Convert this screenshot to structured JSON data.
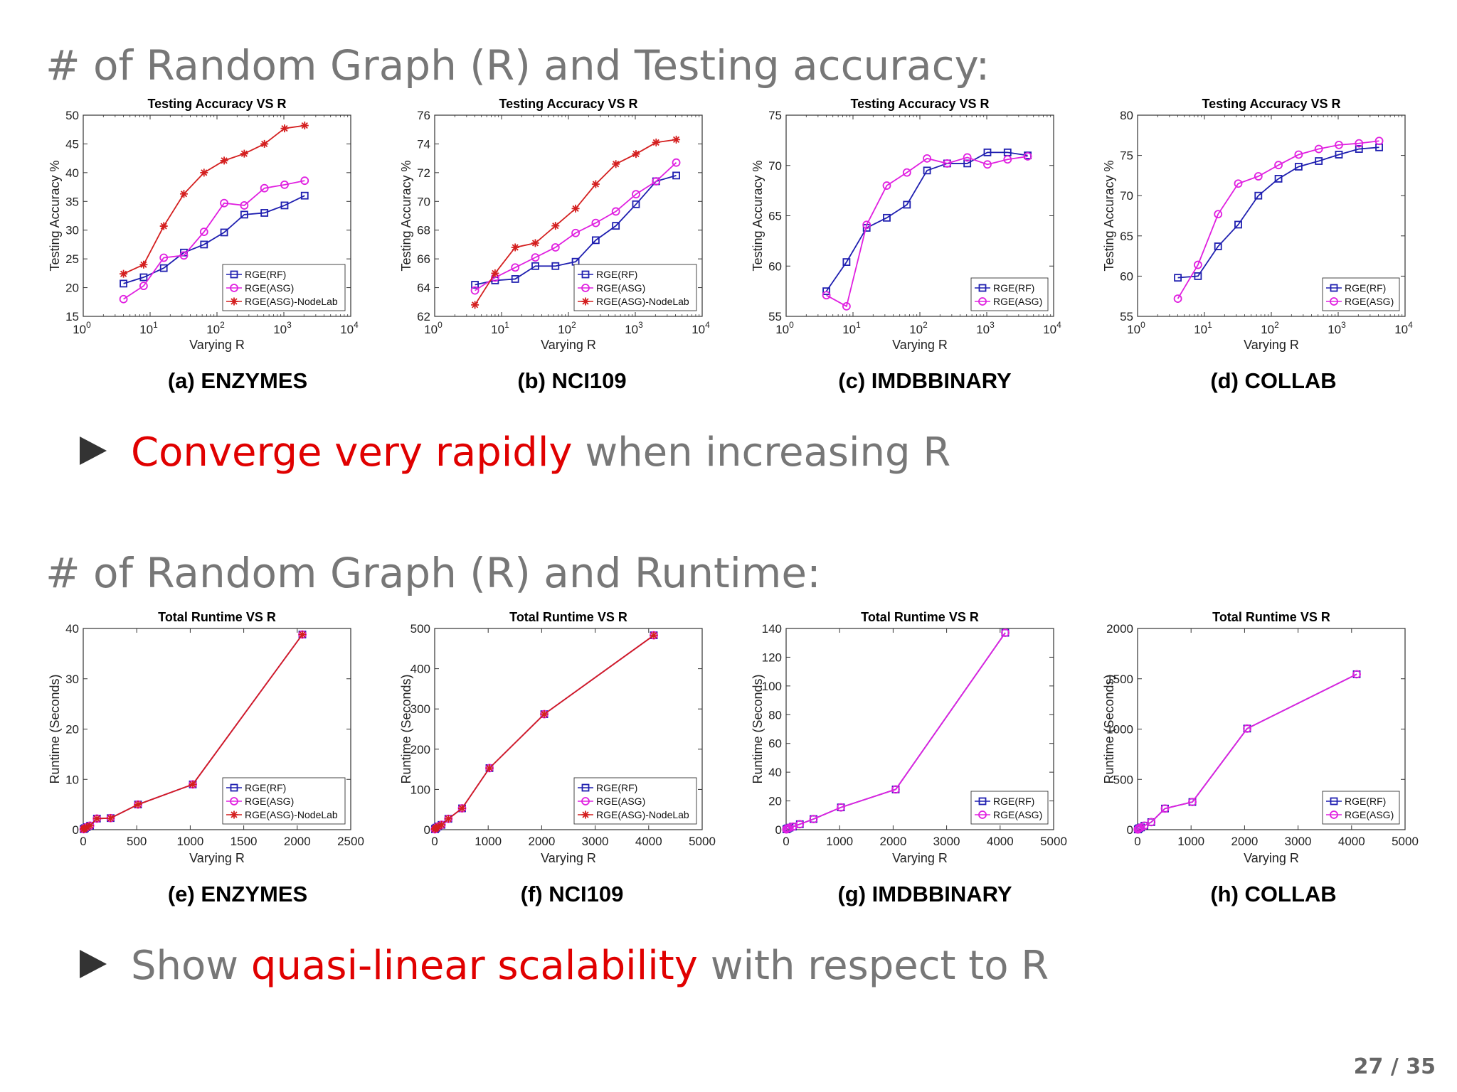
{
  "slide": {
    "heading1": "# of Random Graph (R) and Testing accuracy:",
    "bullet1_red": "Converge very rapidly",
    "bullet1_rest": " when increasing R",
    "heading2": "# of Random Graph (R) and Runtime:",
    "bullet2_pre": "Show ",
    "bullet2_red": "quasi-linear scalability",
    "bullet2_post": " with respect to R",
    "page": "27 / 35"
  },
  "colors": {
    "rf": "#1f1fb0",
    "asg": "#e020e0",
    "nodelab": "#d41f1f"
  },
  "chart_data": [
    {
      "id": "a",
      "type": "line",
      "xscale": "log",
      "caption": "(a) ENZYMES",
      "title": "Testing Accuracy VS R",
      "xlabel": "Varying R",
      "ylabel": "Testing Accuracy %",
      "xlim": [
        1,
        10000
      ],
      "ylim": [
        15,
        50
      ],
      "yticks": [
        15,
        20,
        25,
        30,
        35,
        40,
        45,
        50
      ],
      "x": [
        4,
        8,
        16,
        32,
        64,
        128,
        256,
        512,
        1024,
        2048
      ],
      "series": [
        {
          "name": "RGE(RF)",
          "marker": "square",
          "values": [
            20.7,
            21.8,
            23.4,
            26.1,
            27.5,
            29.6,
            32.7,
            33.0,
            34.3,
            36.0
          ]
        },
        {
          "name": "RGE(ASG)",
          "marker": "circle",
          "values": [
            18.0,
            20.3,
            25.2,
            25.6,
            29.7,
            34.7,
            34.3,
            37.3,
            37.9,
            38.6
          ]
        },
        {
          "name": "RGE(ASG)-NodeLab",
          "marker": "star",
          "values": [
            22.4,
            24.0,
            30.7,
            36.3,
            40.0,
            42.1,
            43.3,
            45.0,
            47.7,
            48.2
          ]
        }
      ]
    },
    {
      "id": "b",
      "type": "line",
      "xscale": "log",
      "caption": "(b) NCI109",
      "title": "Testing Accuracy VS R",
      "xlabel": "Varying R",
      "ylabel": "Testing Accuracy %",
      "xlim": [
        1,
        10000
      ],
      "ylim": [
        62,
        76
      ],
      "yticks": [
        62,
        64,
        66,
        68,
        70,
        72,
        74,
        76
      ],
      "x": [
        4,
        8,
        16,
        32,
        64,
        128,
        256,
        512,
        1024,
        2048,
        4096
      ],
      "series": [
        {
          "name": "RGE(RF)",
          "marker": "square",
          "values": [
            64.2,
            64.5,
            64.6,
            65.5,
            65.5,
            65.8,
            67.3,
            68.3,
            69.8,
            71.4,
            71.8
          ]
        },
        {
          "name": "RGE(ASG)",
          "marker": "circle",
          "values": [
            63.8,
            64.7,
            65.4,
            66.1,
            66.8,
            67.8,
            68.5,
            69.3,
            70.5,
            71.4,
            72.7
          ]
        },
        {
          "name": "RGE(ASG)-NodeLab",
          "marker": "star",
          "values": [
            62.8,
            65.0,
            66.8,
            67.1,
            68.3,
            69.5,
            71.2,
            72.6,
            73.3,
            74.1,
            74.3
          ]
        }
      ]
    },
    {
      "id": "c",
      "type": "line",
      "xscale": "log",
      "caption": "(c) IMDBBINARY",
      "title": "Testing Accuracy VS R",
      "xlabel": "Varying R",
      "ylabel": "Testing Accuracy %",
      "xlim": [
        1,
        10000
      ],
      "ylim": [
        55,
        75
      ],
      "yticks": [
        55,
        60,
        65,
        70,
        75
      ],
      "x": [
        4,
        8,
        16,
        32,
        64,
        128,
        256,
        512,
        1024,
        2048,
        4096
      ],
      "series": [
        {
          "name": "RGE(RF)",
          "marker": "square",
          "values": [
            57.5,
            60.4,
            63.8,
            64.8,
            66.1,
            69.5,
            70.2,
            70.2,
            71.3,
            71.3,
            71.0
          ]
        },
        {
          "name": "RGE(ASG)",
          "marker": "circle",
          "values": [
            57.1,
            56.0,
            64.1,
            68.0,
            69.3,
            70.7,
            70.2,
            70.8,
            70.1,
            70.6,
            70.9
          ]
        }
      ]
    },
    {
      "id": "d",
      "type": "line",
      "xscale": "log",
      "caption": "(d) COLLAB",
      "title": "Testing Accuracy VS R",
      "xlabel": "Varying R",
      "ylabel": "Testing Accuracy %",
      "xlim": [
        1,
        10000
      ],
      "ylim": [
        55,
        80
      ],
      "yticks": [
        55,
        60,
        65,
        70,
        75,
        80
      ],
      "x": [
        4,
        8,
        16,
        32,
        64,
        128,
        256,
        512,
        1024,
        2048,
        4096
      ],
      "series": [
        {
          "name": "RGE(RF)",
          "marker": "square",
          "values": [
            59.8,
            60.0,
            63.7,
            66.4,
            70.0,
            72.1,
            73.6,
            74.3,
            75.1,
            75.8,
            76.0
          ]
        },
        {
          "name": "RGE(ASG)",
          "marker": "circle",
          "values": [
            57.2,
            61.4,
            67.7,
            71.5,
            72.4,
            73.8,
            75.1,
            75.8,
            76.3,
            76.5,
            76.8
          ]
        }
      ]
    },
    {
      "id": "e",
      "type": "line",
      "xscale": "linear",
      "caption": "(e) ENZYMES",
      "title": "Total Runtime VS R",
      "xlabel": "Varying R",
      "ylabel": "Runtime (Seconds)",
      "xlim": [
        0,
        2500
      ],
      "xticks": [
        0,
        500,
        1000,
        1500,
        2000,
        2500
      ],
      "ylim": [
        0,
        40
      ],
      "yticks": [
        0,
        10,
        20,
        30,
        40
      ],
      "x": [
        4,
        8,
        16,
        32,
        64,
        128,
        256,
        512,
        1024,
        2048
      ],
      "series": [
        {
          "name": "RGE(RF)",
          "marker": "square",
          "values": [
            0.1,
            0.2,
            0.3,
            0.5,
            0.8,
            2.2,
            2.3,
            5.0,
            9.0,
            38.8
          ]
        },
        {
          "name": "RGE(ASG)",
          "marker": "circle",
          "values": [
            0.1,
            0.2,
            0.3,
            0.5,
            0.8,
            2.2,
            2.3,
            5.0,
            9.0,
            38.8
          ]
        },
        {
          "name": "RGE(ASG)-NodeLab",
          "marker": "star",
          "values": [
            0.1,
            0.2,
            0.3,
            0.5,
            0.8,
            2.2,
            2.3,
            5.0,
            9.0,
            38.8
          ]
        }
      ]
    },
    {
      "id": "f",
      "type": "line",
      "xscale": "linear",
      "caption": "(f) NCI109",
      "title": "Total Runtime VS R",
      "xlabel": "Varying R",
      "ylabel": "Runtime (Seconds)",
      "xlim": [
        0,
        5000
      ],
      "xticks": [
        0,
        1000,
        2000,
        3000,
        4000,
        5000
      ],
      "ylim": [
        0,
        500
      ],
      "yticks": [
        0,
        100,
        200,
        300,
        400,
        500
      ],
      "x": [
        4,
        8,
        16,
        32,
        64,
        128,
        256,
        512,
        1024,
        2048,
        4096
      ],
      "series": [
        {
          "name": "RGE(RF)",
          "marker": "square",
          "values": [
            1,
            2,
            3,
            5,
            8,
            12,
            27,
            53,
            153,
            287,
            483
          ]
        },
        {
          "name": "RGE(ASG)",
          "marker": "circle",
          "values": [
            1,
            2,
            3,
            5,
            8,
            12,
            27,
            53,
            153,
            287,
            483
          ]
        },
        {
          "name": "RGE(ASG)-NodeLab",
          "marker": "star",
          "values": [
            1,
            2,
            3,
            5,
            8,
            12,
            27,
            53,
            153,
            287,
            483
          ]
        }
      ]
    },
    {
      "id": "g",
      "type": "line",
      "xscale": "linear",
      "caption": "(g) IMDBBINARY",
      "title": "Total Runtime VS R",
      "xlabel": "Varying R",
      "ylabel": "Runtime (Seconds)",
      "xlim": [
        0,
        5000
      ],
      "xticks": [
        0,
        1000,
        2000,
        3000,
        4000,
        5000
      ],
      "ylim": [
        0,
        140
      ],
      "yticks": [
        0,
        20,
        40,
        60,
        80,
        100,
        120,
        140
      ],
      "x": [
        4,
        8,
        16,
        32,
        64,
        128,
        256,
        512,
        1024,
        2048,
        4096
      ],
      "series": [
        {
          "name": "RGE(RF)",
          "marker": "square",
          "values": [
            0.2,
            0.4,
            0.6,
            0.9,
            1.4,
            2.1,
            3.8,
            7.4,
            15.5,
            28.0,
            137.0
          ]
        },
        {
          "name": "RGE(ASG)",
          "marker": "circle",
          "values": [
            0.2,
            0.4,
            0.6,
            0.9,
            1.4,
            2.1,
            3.8,
            7.4,
            15.5,
            28.0,
            137.0
          ]
        }
      ]
    },
    {
      "id": "h",
      "type": "line",
      "xscale": "linear",
      "caption": "(h) COLLAB",
      "title": "Total Runtime VS R",
      "xlabel": "Varying R",
      "ylabel": "Runtime (Seconds)",
      "xlim": [
        0,
        5000
      ],
      "xticks": [
        0,
        1000,
        2000,
        3000,
        4000,
        5000
      ],
      "ylim": [
        0,
        2000
      ],
      "yticks": [
        0,
        500,
        1000,
        1500,
        2000
      ],
      "x": [
        4,
        8,
        16,
        32,
        64,
        128,
        256,
        512,
        1024,
        2048,
        4096
      ],
      "series": [
        {
          "name": "RGE(RF)",
          "marker": "square",
          "values": [
            2,
            4,
            8,
            15,
            22,
            40,
            75,
            210,
            275,
            1005,
            1545
          ]
        },
        {
          "name": "RGE(ASG)",
          "marker": "circle",
          "values": [
            2,
            4,
            8,
            15,
            22,
            40,
            75,
            210,
            275,
            1005,
            1545
          ]
        }
      ]
    }
  ]
}
